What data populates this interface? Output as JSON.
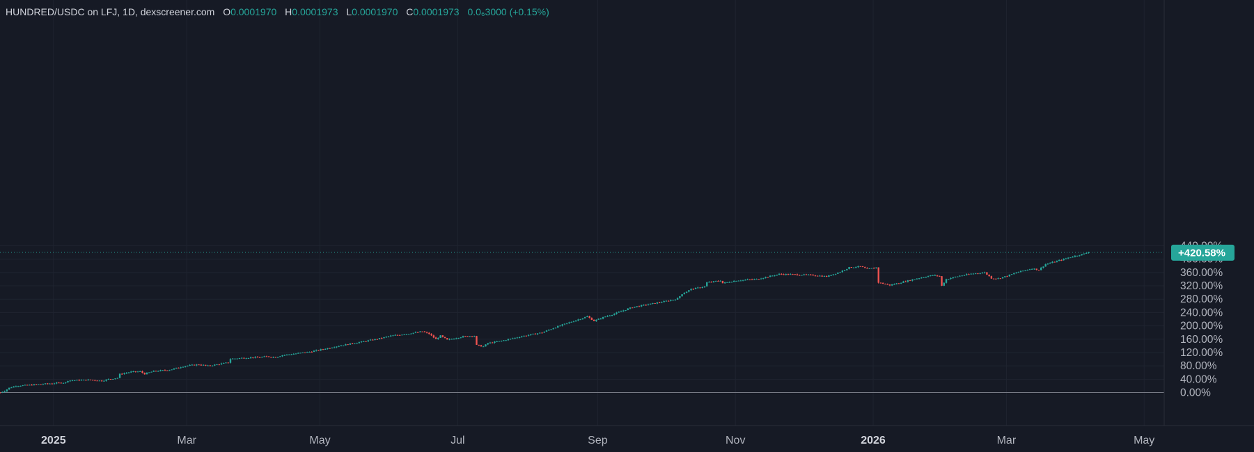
{
  "header": {
    "symbol": "HUNDRED/USDC on LFJ, 1D, dexscreener.com",
    "open_label": "O",
    "open_value": "0.0001970",
    "high_label": "H",
    "high_value": "0.0001973",
    "low_label": "L",
    "low_value": "0.0001970",
    "close_label": "C",
    "close_value": "0.0001973",
    "change": "0.0₆3000 (+0.15%)"
  },
  "last_value_label": "+420.58%",
  "colors": {
    "background": "#161a25",
    "up": "#26a69a",
    "down": "#ef5350",
    "grid": "#1f2430",
    "baseline": "#787b86",
    "last_line": "#26a69a"
  },
  "chart_data": {
    "type": "candlestick",
    "y_axis": {
      "unit": "%",
      "ticks": [
        "440.00%",
        "400.00%",
        "360.00%",
        "320.00%",
        "280.00%",
        "240.00%",
        "200.00%",
        "160.00%",
        "120.00%",
        "80.00%",
        "40.00%",
        "0.00%"
      ],
      "tick_values": [
        440,
        400,
        360,
        320,
        280,
        240,
        200,
        160,
        120,
        80,
        40,
        0
      ],
      "range": [
        -40,
        460
      ]
    },
    "x_axis": {
      "ticks": [
        {
          "label": "2025",
          "bold": true
        },
        {
          "label": "Mar",
          "bold": false
        },
        {
          "label": "May",
          "bold": false
        },
        {
          "label": "Jul",
          "bold": false
        },
        {
          "label": "Sep",
          "bold": false
        },
        {
          "label": "Nov",
          "bold": false
        },
        {
          "label": "2026",
          "bold": true
        },
        {
          "label": "Mar",
          "bold": false
        },
        {
          "label": "May",
          "bold": false
        }
      ],
      "tick_days": [
        24,
        83,
        142,
        203,
        265,
        326,
        387,
        446,
        507
      ],
      "range_days": [
        0,
        556
      ]
    },
    "last_value": 420.58,
    "series": [
      {
        "key_points": [
          [
            0,
            0
          ],
          [
            2,
            5
          ],
          [
            4,
            14
          ],
          [
            7,
            20
          ],
          [
            12,
            22
          ],
          [
            18,
            25
          ],
          [
            24,
            28
          ],
          [
            29,
            30
          ],
          [
            30,
            36
          ],
          [
            40,
            38
          ],
          [
            45,
            35
          ],
          [
            48,
            40
          ],
          [
            52,
            44
          ],
          [
            53,
            55
          ],
          [
            58,
            62
          ],
          [
            62,
            63
          ],
          [
            64,
            56
          ],
          [
            68,
            64
          ],
          [
            75,
            68
          ],
          [
            82,
            80
          ],
          [
            88,
            84
          ],
          [
            92,
            80
          ],
          [
            96,
            84
          ],
          [
            101,
            90
          ],
          [
            102,
            101
          ],
          [
            108,
            104
          ],
          [
            115,
            106
          ],
          [
            118,
            108
          ],
          [
            122,
            106
          ],
          [
            125,
            112
          ],
          [
            130,
            116
          ],
          [
            137,
            122
          ],
          [
            143,
            130
          ],
          [
            150,
            140
          ],
          [
            160,
            152
          ],
          [
            168,
            162
          ],
          [
            173,
            170
          ],
          [
            180,
            176
          ],
          [
            187,
            183
          ],
          [
            190,
            176
          ],
          [
            193,
            160
          ],
          [
            195,
            170
          ],
          [
            198,
            158
          ],
          [
            205,
            168
          ],
          [
            210,
            170
          ],
          [
            211,
            142
          ],
          [
            214,
            138
          ],
          [
            216,
            148
          ],
          [
            222,
            155
          ],
          [
            232,
            170
          ],
          [
            240,
            180
          ],
          [
            246,
            196
          ],
          [
            252,
            210
          ],
          [
            260,
            228
          ],
          [
            263,
            215
          ],
          [
            268,
            228
          ],
          [
            272,
            236
          ],
          [
            280,
            256
          ],
          [
            290,
            268
          ],
          [
            298,
            278
          ],
          [
            300,
            282
          ],
          [
            302,
            296
          ],
          [
            306,
            310
          ],
          [
            312,
            318
          ],
          [
            313,
            330
          ],
          [
            319,
            336
          ],
          [
            320,
            328
          ],
          [
            326,
            336
          ],
          [
            335,
            340
          ],
          [
            345,
            355
          ],
          [
            352,
            354
          ],
          [
            360,
            352
          ],
          [
            366,
            348
          ],
          [
            372,
            362
          ],
          [
            376,
            375
          ],
          [
            381,
            378
          ],
          [
            384,
            370
          ],
          [
            388,
            375
          ],
          [
            389,
            330
          ],
          [
            394,
            322
          ],
          [
            400,
            332
          ],
          [
            406,
            342
          ],
          [
            413,
            352
          ],
          [
            416,
            349
          ],
          [
            417,
            320
          ],
          [
            419,
            340
          ],
          [
            425,
            350
          ],
          [
            430,
            356
          ],
          [
            436,
            360
          ],
          [
            439,
            343
          ],
          [
            442,
            342
          ],
          [
            446,
            350
          ],
          [
            451,
            362
          ],
          [
            457,
            372
          ],
          [
            460,
            368
          ],
          [
            463,
            385
          ],
          [
            470,
            398
          ],
          [
            475,
            408
          ],
          [
            480,
            416
          ],
          [
            482,
            420.58
          ]
        ]
      }
    ]
  }
}
